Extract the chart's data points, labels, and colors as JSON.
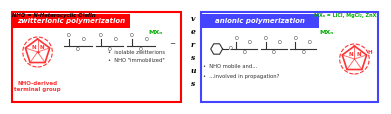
{
  "title_text": "NHO = N-Heterocyclic Olefin",
  "left_box_color": "#FF0000",
  "right_box_color": "#4444FF",
  "left_label": "zwitterionic polymerization",
  "right_label": "anionic polymerization",
  "versus_text": "versus",
  "left_bullets": [
    "isolable zwitterions",
    "NHO \"immobilized\""
  ],
  "left_sub": "NHO-derived\nterminal group",
  "right_bullets": [
    "NHO mobile and...",
    "...involved in propagation?"
  ],
  "mx_green": "#00AA00",
  "mx_top_right": "MXₙ = LiCl, MgCl₂, ZnX₂",
  "mx_chain_left": "MXₙ",
  "mx_chain_right": "MXₙ",
  "bg_color": "#FFFFFF",
  "nho_color": "#FF3333",
  "chain_color": "#333333",
  "bullet_color": "#FF0000",
  "bullet_color_right": "#4444FF"
}
